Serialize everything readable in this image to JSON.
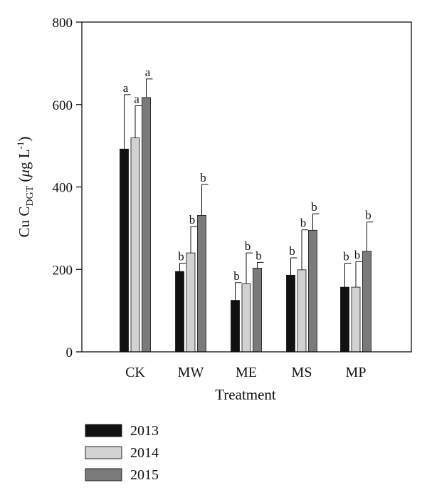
{
  "chart_data": {
    "type": "bar",
    "title": "",
    "xlabel": "Treatment",
    "ylabel": {
      "base": "Cu C",
      "subscript": "DGT",
      "units_open": " (",
      "mu": "μ",
      "units_mid": "g L",
      "superscript": "-1",
      "units_close": ")"
    },
    "ylim": [
      0,
      800
    ],
    "yticks": [
      0,
      200,
      400,
      600,
      800
    ],
    "categories": [
      "CK",
      "MW",
      "ME",
      "MS",
      "MP"
    ],
    "series": [
      {
        "name": "2013",
        "color": "#111111",
        "values": [
          492,
          195,
          125,
          186,
          157
        ],
        "errors": [
          132,
          20,
          43,
          42,
          58
        ],
        "letters": [
          "a",
          "b",
          "b",
          "b",
          "b"
        ]
      },
      {
        "name": "2014",
        "color": "#d2d2d2",
        "values": [
          519,
          240,
          165,
          199,
          157
        ],
        "errors": [
          78,
          64,
          75,
          97,
          62
        ],
        "letters": [
          "a",
          "b",
          "b",
          "b",
          "b"
        ]
      },
      {
        "name": "2015",
        "color": "#7a7a7a",
        "values": [
          617,
          331,
          203,
          295,
          244
        ],
        "errors": [
          45,
          75,
          14,
          40,
          71
        ],
        "letters": [
          "a",
          "b",
          "b",
          "b",
          "b"
        ]
      }
    ],
    "legend_position": "bottom-left",
    "grid": false
  }
}
